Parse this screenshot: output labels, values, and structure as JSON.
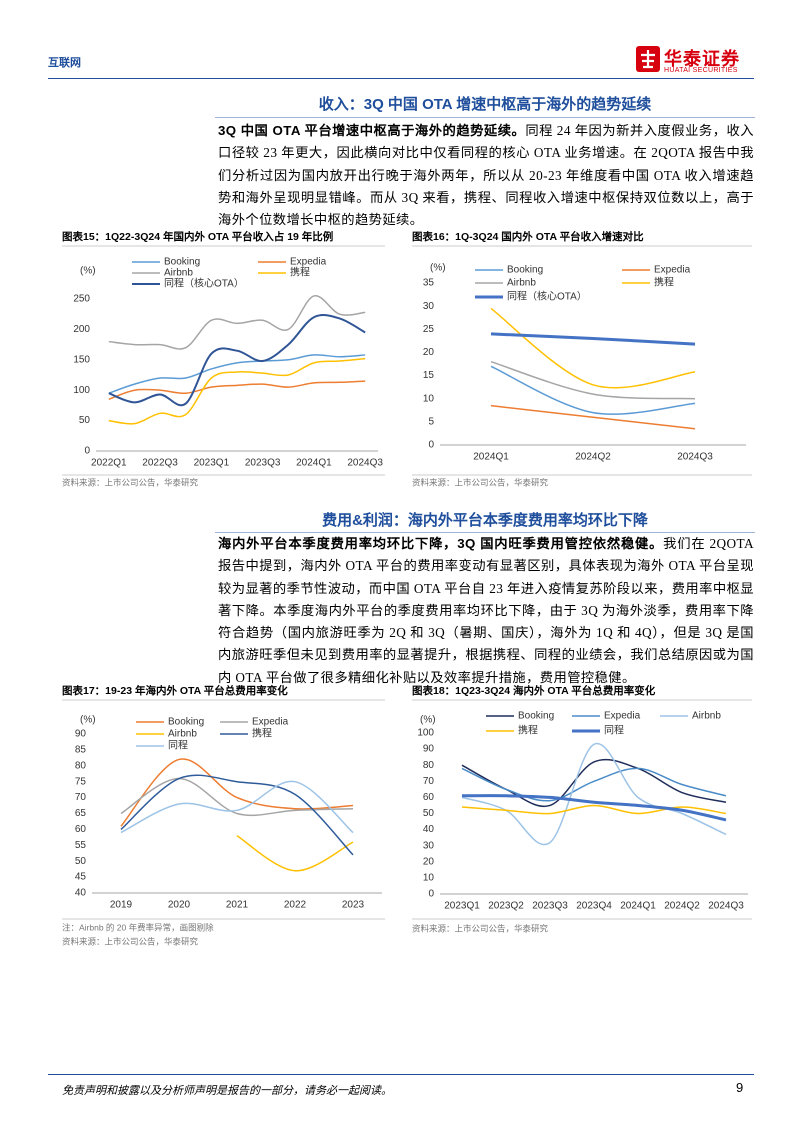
{
  "header": {
    "section": "互联网",
    "logo_cn": "华泰证券",
    "logo_en": "HUATAI SECURITIES"
  },
  "sections": [
    {
      "title": "收入：3Q 中国 OTA 增速中枢高于海外的趋势延续",
      "lead": "3Q 中国 OTA 平台增速中枢高于海外的趋势延续。",
      "body": "同程 24 年因为新并入度假业务，收入口径较 23 年更大，因此横向对比中仅看同程的核心 OTA 业务增速。在 2QOTA 报告中我们分析过因为国内放开出行晚于海外两年，所以从 20-23 年维度看中国 OTA 收入增速趋势和海外呈现明显错峰。而从 3Q 来看，携程、同程收入增速中枢保持双位数以上，高于海外个位数增长中枢的趋势延续。"
    },
    {
      "title": "费用&利润：海内外平台本季度费用率均环比下降",
      "lead": "海内外平台本季度费用率均环比下降，3Q 国内旺季费用管控依然稳健。",
      "body": "我们在 2QOTA 报告中提到，海内外 OTA 平台的费用率变动有显著区别，具体表现为海外 OTA 平台呈现较为显著的季节性波动，而中国 OTA 平台自 23 年进入疫情复苏阶段以来，费用率中枢显著下降。本季度海内外平台的季度费用率均环比下降，由于 3Q 为海外淡季，费用率下降符合趋势（国内旅游旺季为 2Q 和 3Q（暑期、国庆），海外为 1Q 和 4Q），但是 3Q 是国内旅游旺季但未见到费用率的显著提升，根据携程、同程的业绩会，我们总结原因或为国内 OTA 平台做了很多精细化补贴以及效率提升措施，费用管控稳健。"
    }
  ],
  "chart_data": [
    {
      "type": "line",
      "title": "图表15：1Q22-3Q24 年国内外 OTA 平台收入占 19 年比例",
      "y_label": "(%)",
      "categories": [
        "2022Q1",
        null,
        "2022Q3",
        null,
        "2023Q1",
        null,
        "2023Q3",
        null,
        "2024Q1",
        null,
        "2024Q3"
      ],
      "ylim": [
        0,
        250
      ],
      "yticks": [
        0,
        50,
        100,
        150,
        200,
        250
      ],
      "grid": false,
      "smooth": true,
      "series": [
        {
          "name": "Booking",
          "color": "#5b9bd5",
          "line_width": 1.5,
          "values": [
            95,
            110,
            120,
            120,
            135,
            145,
            148,
            150,
            158,
            155,
            158
          ]
        },
        {
          "name": "Expedia",
          "color": "#ed7d31",
          "line_width": 1.5,
          "values": [
            85,
            100,
            100,
            95,
            105,
            108,
            110,
            105,
            112,
            113,
            115
          ]
        },
        {
          "name": "Airbnb",
          "color": "#a5a5a5",
          "line_width": 1.5,
          "values": [
            180,
            175,
            175,
            170,
            215,
            210,
            215,
            200,
            255,
            225,
            228
          ]
        },
        {
          "name": "携程",
          "color": "#ffc000",
          "line_width": 1.5,
          "values": [
            50,
            45,
            62,
            60,
            120,
            130,
            128,
            125,
            145,
            148,
            152
          ]
        },
        {
          "name": "同程（核心OTA）",
          "color": "#2f5597",
          "line_width": 2,
          "values": [
            95,
            80,
            93,
            78,
            160,
            165,
            148,
            175,
            220,
            218,
            195
          ]
        }
      ],
      "source": "资料来源：上市公司公告，华泰研究"
    },
    {
      "type": "line",
      "title": "图表16：1Q-3Q24 国内外 OTA 平台收入增速对比",
      "y_label": "(%)",
      "categories": [
        "2024Q1",
        "2024Q2",
        "2024Q3"
      ],
      "ylim": [
        0,
        35
      ],
      "yticks": [
        0,
        5,
        10,
        15,
        20,
        25,
        30,
        35
      ],
      "grid": false,
      "smooth": true,
      "series": [
        {
          "name": "Booking",
          "color": "#5b9bd5",
          "line_width": 1.5,
          "values": [
            17,
            7,
            9
          ]
        },
        {
          "name": "Expedia",
          "color": "#ed7d31",
          "line_width": 1.5,
          "values": [
            8.5,
            6,
            3.5
          ]
        },
        {
          "name": "Airbnb",
          "color": "#a5a5a5",
          "line_width": 1.5,
          "values": [
            18,
            11,
            10
          ]
        },
        {
          "name": "携程",
          "color": "#ffc000",
          "line_width": 1.5,
          "values": [
            29.5,
            13,
            15.8
          ]
        },
        {
          "name": "同程（核心OTA）",
          "color": "#4472c4",
          "line_width": 3,
          "values": [
            24,
            23,
            21.8
          ]
        }
      ],
      "source": "资料来源：上市公司公告，华泰研究"
    },
    {
      "type": "line",
      "title": "图表17：19-23 年海内外 OTA 平台总费用率变化",
      "y_label": "(%)",
      "categories": [
        "2019",
        "2020",
        "2021",
        "2022",
        "2023"
      ],
      "ylim": [
        40,
        90
      ],
      "yticks": [
        40,
        45,
        50,
        55,
        60,
        65,
        70,
        75,
        80,
        85,
        90
      ],
      "grid": false,
      "smooth": true,
      "series": [
        {
          "name": "Booking",
          "color": "#ed7d31",
          "line_width": 1.5,
          "values": [
            61,
            82,
            70,
            66.5,
            67.5
          ]
        },
        {
          "name": "Expedia",
          "color": "#a5a5a5",
          "line_width": 1.5,
          "values": [
            65,
            76,
            65,
            66,
            66.5
          ]
        },
        {
          "name": "Airbnb",
          "color": "#ffc000",
          "line_width": 1.5,
          "values": [
            null,
            null,
            58,
            47,
            56
          ]
        },
        {
          "name": "携程",
          "color": "#2e5b9a",
          "line_width": 1.5,
          "values": [
            60,
            76,
            75,
            71,
            52
          ]
        },
        {
          "name": "同程",
          "color": "#9dc3e6",
          "line_width": 1.5,
          "values": [
            59,
            68,
            66,
            75,
            59
          ]
        }
      ],
      "note": "注：Airbnb 的 20 年费率异常，画图剔除",
      "source": "资料来源：上市公司公告，华泰研究"
    },
    {
      "type": "line",
      "title": "图表18：1Q23-3Q24 海内外 OTA 平台总费用率变化",
      "y_label": "(%)",
      "categories": [
        "2023Q1",
        "2023Q2",
        "2023Q3",
        "2023Q4",
        "2024Q1",
        "2024Q2",
        "2024Q3"
      ],
      "ylim": [
        0,
        100
      ],
      "yticks": [
        0,
        10,
        20,
        30,
        40,
        50,
        60,
        70,
        80,
        90,
        100
      ],
      "grid": false,
      "smooth": true,
      "series": [
        {
          "name": "Booking",
          "color": "#1f2d5a",
          "line_width": 1.5,
          "values": [
            80,
            65,
            55,
            82,
            78,
            63,
            57
          ]
        },
        {
          "name": "Expedia",
          "color": "#4a8bc8",
          "line_width": 1.5,
          "values": [
            78,
            65,
            58,
            70,
            78,
            68,
            61
          ]
        },
        {
          "name": "Airbnb",
          "color": "#9dc3e6",
          "line_width": 1.5,
          "values": [
            60,
            52,
            32,
            93,
            60,
            50,
            37
          ]
        },
        {
          "name": "携程",
          "color": "#ffc000",
          "line_width": 1.5,
          "values": [
            54,
            52,
            50,
            55,
            50,
            54,
            50
          ]
        },
        {
          "name": "同程",
          "color": "#4472c4",
          "line_width": 3,
          "values": [
            61,
            61,
            60,
            57,
            55,
            52,
            46
          ]
        }
      ],
      "source": "资料来源：上市公司公告，华泰研究"
    }
  ],
  "footer": {
    "disclaimer": "免责声明和披露以及分析师声明是报告的一部分，请务必一起阅读。",
    "page": 9
  }
}
